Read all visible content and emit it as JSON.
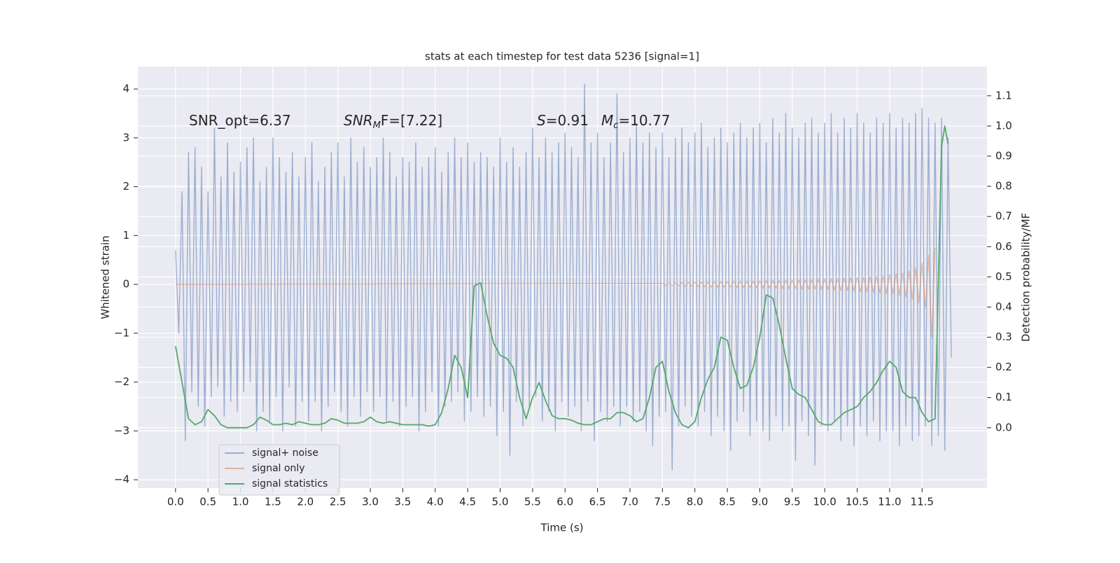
{
  "chart_data": {
    "type": "line",
    "title": "stats at each timestep for test data 5236 [signal=1]",
    "xlabel": "Time (s)",
    "ylabel": "Whitened strain",
    "y2label": "Detection probability/MF",
    "annotations": [
      {
        "parts": [
          "SNR_opt=6.37"
        ]
      },
      {
        "main": "SNR",
        "sub": "M",
        "rest": "F=[7.22]"
      },
      {
        "main": "S",
        "rest": "=0.91"
      },
      {
        "main": "M",
        "sub": "c",
        "rest": "=10.77"
      }
    ],
    "xlim": [
      -0.58,
      12.5
    ],
    "xticks": [
      {
        "value": 0,
        "label": "0.0"
      },
      0.5,
      {
        "value": 1,
        "label": "1.0"
      },
      1.5,
      {
        "value": 2,
        "label": "2.0"
      },
      2.5,
      {
        "value": 3,
        "label": "3.0"
      },
      3.5,
      {
        "value": 4,
        "label": "4.0"
      },
      4.5,
      {
        "value": 5,
        "label": "5.0"
      },
      5.5,
      {
        "value": 6,
        "label": "6.0"
      },
      6.5,
      {
        "value": 7,
        "label": "7.0"
      },
      7.5,
      {
        "value": 8,
        "label": "8.0"
      },
      8.5,
      {
        "value": 9,
        "label": "9.0"
      },
      9.5,
      {
        "value": 10,
        "label": "10.0"
      },
      10.5,
      {
        "value": 11,
        "label": "11.0"
      },
      11.5
    ],
    "ylim": [
      -4.17,
      4.46
    ],
    "yticks": [
      {
        "value": -4,
        "label": "−4"
      },
      {
        "value": -3,
        "label": "−3"
      },
      {
        "value": -2,
        "label": "−2"
      },
      {
        "value": -1,
        "label": "−1"
      },
      0,
      1,
      2,
      3,
      4
    ],
    "y2lim": [
      -0.2,
      1.197
    ],
    "y2ticks": [
      {
        "value": 0,
        "label": "0.0"
      },
      0.1,
      0.2,
      0.3,
      0.4,
      0.5,
      0.6,
      0.7,
      0.8,
      0.9,
      {
        "value": 1,
        "label": "1.0"
      },
      1.1
    ],
    "grid": true,
    "legend": "lower left",
    "series": [
      {
        "name": "signal+ noise",
        "color": "#4c72b0",
        "x": [
          0,
          0.05,
          0.1,
          0.15,
          0.2,
          0.25,
          0.3,
          0.35,
          0.4,
          0.45,
          0.5,
          0.55,
          0.6,
          0.65,
          0.7,
          0.75,
          0.8,
          0.85,
          0.9,
          0.95,
          1,
          1.05,
          1.1,
          1.15,
          1.2,
          1.25,
          1.3,
          1.35,
          1.4,
          1.45,
          1.5,
          1.55,
          1.6,
          1.65,
          1.7,
          1.75,
          1.8,
          1.85,
          1.9,
          1.95,
          2,
          2.05,
          2.1,
          2.15,
          2.2,
          2.25,
          2.3,
          2.35,
          2.4,
          2.45,
          2.5,
          2.55,
          2.6,
          2.65,
          2.7,
          2.75,
          2.8,
          2.85,
          2.9,
          2.95,
          3,
          3.05,
          3.1,
          3.15,
          3.2,
          3.25,
          3.3,
          3.35,
          3.4,
          3.45,
          3.5,
          3.55,
          3.6,
          3.65,
          3.7,
          3.75,
          3.8,
          3.85,
          3.9,
          3.95,
          4,
          4.05,
          4.1,
          4.15,
          4.2,
          4.25,
          4.3,
          4.35,
          4.4,
          4.45,
          4.5,
          4.55,
          4.6,
          4.65,
          4.7,
          4.75,
          4.8,
          4.85,
          4.9,
          4.95,
          5,
          5.05,
          5.1,
          5.15,
          5.2,
          5.25,
          5.3,
          5.35,
          5.4,
          5.45,
          5.5,
          5.55,
          5.6,
          5.65,
          5.7,
          5.75,
          5.8,
          5.85,
          5.9,
          5.95,
          6,
          6.05,
          6.1,
          6.15,
          6.2,
          6.25,
          6.3,
          6.35,
          6.4,
          6.45,
          6.5,
          6.55,
          6.6,
          6.65,
          6.7,
          6.75,
          6.8,
          6.85,
          6.9,
          6.95,
          7,
          7.05,
          7.1,
          7.15,
          7.2,
          7.25,
          7.3,
          7.35,
          7.4,
          7.45,
          7.5,
          7.55,
          7.6,
          7.65,
          7.7,
          7.75,
          7.8,
          7.85,
          7.9,
          7.95,
          8,
          8.05,
          8.1,
          8.15,
          8.2,
          8.25,
          8.3,
          8.35,
          8.4,
          8.45,
          8.5,
          8.55,
          8.6,
          8.65,
          8.7,
          8.75,
          8.8,
          8.85,
          8.9,
          8.95,
          9,
          9.05,
          9.1,
          9.15,
          9.2,
          9.25,
          9.3,
          9.35,
          9.4,
          9.45,
          9.5,
          9.55,
          9.6,
          9.65,
          9.7,
          9.75,
          9.8,
          9.85,
          9.9,
          9.95,
          10,
          10.05,
          10.1,
          10.15,
          10.2,
          10.25,
          10.3,
          10.35,
          10.4,
          10.45,
          10.5,
          10.55,
          10.6,
          10.65,
          10.7,
          10.75,
          10.8,
          10.85,
          10.9,
          10.95,
          11,
          11.05,
          11.1,
          11.15,
          11.2,
          11.25,
          11.3,
          11.35,
          11.4,
          11.45,
          11.5,
          11.55,
          11.6,
          11.65,
          11.7,
          11.75,
          11.8,
          11.85,
          11.9,
          11.95
        ],
        "values": [
          0.7,
          -1.0,
          1.9,
          -3.2,
          2.7,
          -2.2,
          2.8,
          -2.5,
          2.4,
          -2.9,
          1.9,
          -2.3,
          3.2,
          -2.1,
          2.2,
          -2.7,
          2.9,
          -2.4,
          2.3,
          -2.6,
          2.5,
          -2.2,
          2.8,
          -2.0,
          3.0,
          -3.0,
          2.1,
          -2.6,
          2.4,
          -2.8,
          3.0,
          -2.3,
          2.6,
          -3.0,
          2.3,
          -2.1,
          2.7,
          -2.9,
          2.2,
          -2.4,
          2.6,
          -2.8,
          2.9,
          -2.4,
          2.1,
          -3.0,
          2.4,
          -2.5,
          2.7,
          -2.2,
          2.9,
          -2.6,
          2.2,
          -2.9,
          3.0,
          -2.3,
          2.5,
          -2.7,
          2.8,
          -2.2,
          2.4,
          -2.6,
          2.6,
          -2.3,
          3.0,
          -2.8,
          2.7,
          -2.4,
          2.2,
          -2.9,
          2.6,
          -2.5,
          2.5,
          -2.3,
          2.9,
          -3.0,
          2.4,
          -2.6,
          2.6,
          -2.2,
          2.8,
          -2.9,
          2.3,
          -2.5,
          2.7,
          -2.4,
          3.0,
          -2.2,
          2.6,
          -2.8,
          2.9,
          -2.6,
          2.5,
          -2.3,
          2.7,
          -2.7,
          2.6,
          -2.5,
          2.4,
          -3.1,
          3.0,
          -2.6,
          2.5,
          -3.5,
          2.8,
          -2.4,
          2.4,
          -2.9,
          2.7,
          -2.5,
          3.2,
          -2.3,
          2.6,
          -2.8,
          3.0,
          -2.6,
          2.7,
          -3.0,
          2.9,
          -2.4,
          3.1,
          -2.7,
          2.8,
          -2.5,
          2.6,
          -3.0,
          4.1,
          -2.4,
          2.9,
          -3.2,
          3.1,
          -2.6,
          2.6,
          -2.8,
          2.9,
          -2.5,
          3.9,
          -2.9,
          2.7,
          -2.5,
          3.0,
          -2.8,
          3.3,
          -2.6,
          2.9,
          -3.0,
          3.1,
          -3.3,
          2.8,
          -2.7,
          3.1,
          -2.6,
          2.6,
          -3.8,
          3.0,
          -2.9,
          3.2,
          -2.5,
          2.9,
          -2.7,
          3.1,
          -2.9,
          3.3,
          -2.6,
          2.8,
          -3.1,
          3.0,
          -2.7,
          3.2,
          -3.0,
          2.9,
          -3.4,
          3.1,
          -2.8,
          3.3,
          -2.6,
          3.0,
          -3.1,
          3.2,
          -2.8,
          3.3,
          -3.0,
          2.9,
          -3.2,
          3.4,
          -2.7,
          3.1,
          -3.0,
          3.5,
          -2.9,
          3.2,
          -3.6,
          3.0,
          -2.8,
          3.3,
          -3.1,
          3.4,
          -3.7,
          3.1,
          -2.9,
          3.3,
          -3.0,
          3.5,
          -2.8,
          3.1,
          -3.2,
          3.4,
          -2.9,
          3.2,
          -3.3,
          3.5,
          -2.9,
          3.3,
          -3.1,
          3.1,
          -2.8,
          3.4,
          -3.2,
          3.3,
          -3.0,
          3.5,
          -3.0,
          3.2,
          -3.3,
          3.4,
          -2.9,
          3.3,
          -3.2,
          3.5,
          -3.1,
          3.6,
          -2.9,
          3.4,
          -3.3,
          3.3,
          -3.1,
          3.4,
          -3.4,
          3.0,
          -1.5
        ]
      },
      {
        "name": "signal only",
        "color": "#dd8452",
        "x": [
          0,
          7.5,
          7.55,
          7.6,
          7.65,
          7.7,
          7.75,
          7.8,
          7.85,
          7.9,
          7.95,
          8,
          8.05,
          8.1,
          8.15,
          8.2,
          8.25,
          8.3,
          8.35,
          8.4,
          8.45,
          8.5,
          8.55,
          8.6,
          8.65,
          8.7,
          8.75,
          8.8,
          8.85,
          8.9,
          8.95,
          9,
          9.05,
          9.1,
          9.15,
          9.2,
          9.25,
          9.3,
          9.35,
          9.4,
          9.45,
          9.5,
          9.55,
          9.6,
          9.65,
          9.7,
          9.75,
          9.8,
          9.85,
          9.9,
          9.95,
          10,
          10.05,
          10.1,
          10.15,
          10.2,
          10.25,
          10.3,
          10.35,
          10.4,
          10.45,
          10.5,
          10.55,
          10.6,
          10.65,
          10.7,
          10.75,
          10.8,
          10.85,
          10.9,
          10.95,
          11,
          11.05,
          11.1,
          11.15,
          11.2,
          11.25,
          11.3,
          11.35,
          11.4,
          11.45,
          11.5,
          11.55,
          11.6,
          11.65,
          11.7
        ],
        "values": [
          0,
          0.02,
          -0.02,
          0.03,
          -0.03,
          0.03,
          -0.03,
          0.04,
          -0.04,
          0.04,
          -0.04,
          0.05,
          -0.05,
          0.05,
          -0.05,
          0.05,
          -0.06,
          0.06,
          -0.06,
          0.06,
          -0.06,
          0.06,
          -0.06,
          0.07,
          -0.07,
          0.07,
          -0.07,
          0.07,
          -0.07,
          0.07,
          -0.07,
          0.07,
          -0.08,
          0.08,
          -0.08,
          0.08,
          -0.08,
          0.08,
          -0.09,
          0.09,
          -0.09,
          0.09,
          -0.09,
          0.09,
          -0.1,
          0.1,
          -0.1,
          0.1,
          -0.1,
          0.11,
          -0.11,
          0.11,
          -0.11,
          0.12,
          -0.12,
          0.12,
          -0.13,
          0.13,
          -0.13,
          0.14,
          -0.14,
          0.14,
          -0.15,
          0.15,
          -0.16,
          0.16,
          -0.17,
          0.17,
          -0.18,
          0.18,
          -0.19,
          0.2,
          -0.2,
          0.22,
          -0.23,
          0.24,
          -0.26,
          0.28,
          -0.31,
          0.34,
          -0.38,
          0.44,
          -0.5,
          0.6,
          -1.1,
          0.75
        ]
      },
      {
        "name": "signal statistics",
        "color": "#55a868",
        "axis": "y2",
        "x": [
          0,
          0.1,
          0.2,
          0.3,
          0.4,
          0.5,
          0.6,
          0.7,
          0.8,
          0.9,
          1,
          1.1,
          1.2,
          1.3,
          1.4,
          1.5,
          1.6,
          1.7,
          1.8,
          1.9,
          2,
          2.1,
          2.2,
          2.3,
          2.4,
          2.5,
          2.6,
          2.7,
          2.8,
          2.9,
          3,
          3.1,
          3.2,
          3.3,
          3.4,
          3.5,
          3.6,
          3.7,
          3.8,
          3.9,
          4,
          4.1,
          4.2,
          4.3,
          4.4,
          4.5,
          4.6,
          4.7,
          4.8,
          4.9,
          5,
          5.1,
          5.2,
          5.3,
          5.4,
          5.5,
          5.6,
          5.7,
          5.8,
          5.9,
          6,
          6.1,
          6.2,
          6.3,
          6.4,
          6.5,
          6.6,
          6.7,
          6.8,
          6.9,
          7,
          7.1,
          7.2,
          7.3,
          7.4,
          7.5,
          7.6,
          7.7,
          7.8,
          7.9,
          8,
          8.1,
          8.2,
          8.3,
          8.4,
          8.5,
          8.6,
          8.7,
          8.8,
          8.9,
          9,
          9.1,
          9.2,
          9.3,
          9.4,
          9.5,
          9.6,
          9.7,
          9.8,
          9.9,
          10,
          10.1,
          10.2,
          10.3,
          10.4,
          10.5,
          10.6,
          10.7,
          10.8,
          10.9,
          11,
          11.1,
          11.2,
          11.3,
          11.4,
          11.5,
          11.6,
          11.7,
          11.8,
          11.85,
          11.9
        ],
        "values": [
          0.27,
          0.15,
          0.03,
          0.01,
          0.02,
          0.06,
          0.04,
          0.01,
          0,
          0,
          0,
          0,
          0.01,
          0.035,
          0.025,
          0.01,
          0.01,
          0.015,
          0.01,
          0.02,
          0.015,
          0.01,
          0.01,
          0.015,
          0.03,
          0.025,
          0.015,
          0.015,
          0.015,
          0.02,
          0.035,
          0.02,
          0.015,
          0.02,
          0.015,
          0.01,
          0.01,
          0.01,
          0.01,
          0.005,
          0.01,
          0.05,
          0.13,
          0.24,
          0.2,
          0.1,
          0.47,
          0.48,
          0.37,
          0.28,
          0.24,
          0.23,
          0.2,
          0.1,
          0.03,
          0.1,
          0.15,
          0.09,
          0.04,
          0.03,
          0.03,
          0.025,
          0.015,
          0.01,
          0.01,
          0.02,
          0.03,
          0.03,
          0.05,
          0.05,
          0.04,
          0.02,
          0.03,
          0.1,
          0.2,
          0.22,
          0.12,
          0.05,
          0.01,
          0,
          0.02,
          0.1,
          0.16,
          0.2,
          0.3,
          0.29,
          0.2,
          0.13,
          0.14,
          0.2,
          0.3,
          0.44,
          0.43,
          0.34,
          0.23,
          0.13,
          0.11,
          0.1,
          0.06,
          0.02,
          0.01,
          0.01,
          0.03,
          0.05,
          0.06,
          0.07,
          0.1,
          0.12,
          0.15,
          0.19,
          0.22,
          0.2,
          0.12,
          0.1,
          0.1,
          0.05,
          0.02,
          0.03,
          0.93,
          1.0,
          0.94
        ]
      }
    ]
  }
}
